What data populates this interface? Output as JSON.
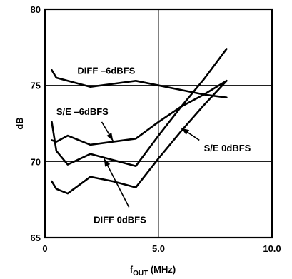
{
  "chart_data": {
    "type": "line",
    "xlabel_main": "f",
    "xlabel_sub": "OUT",
    "xlabel_unit": " (MHz)",
    "ylabel": "dB",
    "xlim": [
      0,
      10
    ],
    "ylim": [
      65,
      80
    ],
    "x_ticks": [
      0,
      5,
      10
    ],
    "x_tick_labels": [
      "0",
      "5.0",
      "10.0"
    ],
    "y_ticks": [
      65,
      70,
      75,
      80
    ],
    "y_tick_labels": [
      "65",
      "70",
      "75",
      "80"
    ],
    "grid_x": [
      5
    ],
    "grid_y": [
      70,
      75
    ],
    "series": [
      {
        "name": "DIFF –6dBFS",
        "x": [
          0.3,
          0.5,
          1,
          2,
          3,
          4,
          5,
          6,
          7,
          8
        ],
        "y": [
          76.0,
          75.5,
          75.3,
          74.9,
          75.1,
          75.3,
          75.0,
          74.7,
          74.4,
          74.2
        ]
      },
      {
        "name": "S/E –6dBFS",
        "x": [
          0.3,
          0.5,
          1,
          2,
          3,
          4,
          5,
          6,
          7,
          8
        ],
        "y": [
          71.4,
          71.3,
          71.7,
          71.1,
          71.3,
          71.5,
          72.6,
          73.6,
          74.4,
          75.3
        ]
      },
      {
        "name": "DIFF 0dBFS",
        "x": [
          0.3,
          0.5,
          1,
          2,
          3,
          4,
          5,
          6,
          7,
          8
        ],
        "y": [
          72.6,
          70.7,
          69.8,
          70.5,
          70.1,
          69.7,
          71.7,
          73.6,
          75.4,
          77.4
        ]
      },
      {
        "name": "S/E 0dBFS",
        "x": [
          0.3,
          0.5,
          1,
          2,
          3,
          4,
          5,
          6,
          7,
          8
        ],
        "y": [
          68.7,
          68.2,
          67.9,
          69.0,
          68.7,
          68.3,
          70.2,
          72.0,
          73.7,
          75.3
        ]
      }
    ],
    "annotations": [
      {
        "series": 0,
        "text": "DIFF –6dBFS",
        "at": [
          2.7,
          76.0
        ],
        "anchor": "middle"
      },
      {
        "series": 1,
        "text": "S/E –6dBFS",
        "at": [
          0.5,
          73.3
        ],
        "anchor": "start",
        "pointer_from": [
          2.5,
          72.6
        ],
        "pointer_to": [
          3.0,
          71.35
        ]
      },
      {
        "series": 3,
        "text": "S/E 0dBFS",
        "at": [
          7.0,
          70.9
        ],
        "anchor": "start",
        "pointer_from": [
          6.8,
          71.4
        ],
        "pointer_to": [
          6.0,
          72.2
        ]
      },
      {
        "series": 2,
        "text": "DIFF 0dBFS",
        "at": [
          3.3,
          66.2
        ],
        "anchor": "middle",
        "pointer_from": [
          3.7,
          67.0
        ],
        "pointer_to": [
          2.6,
          70.2
        ]
      }
    ]
  }
}
